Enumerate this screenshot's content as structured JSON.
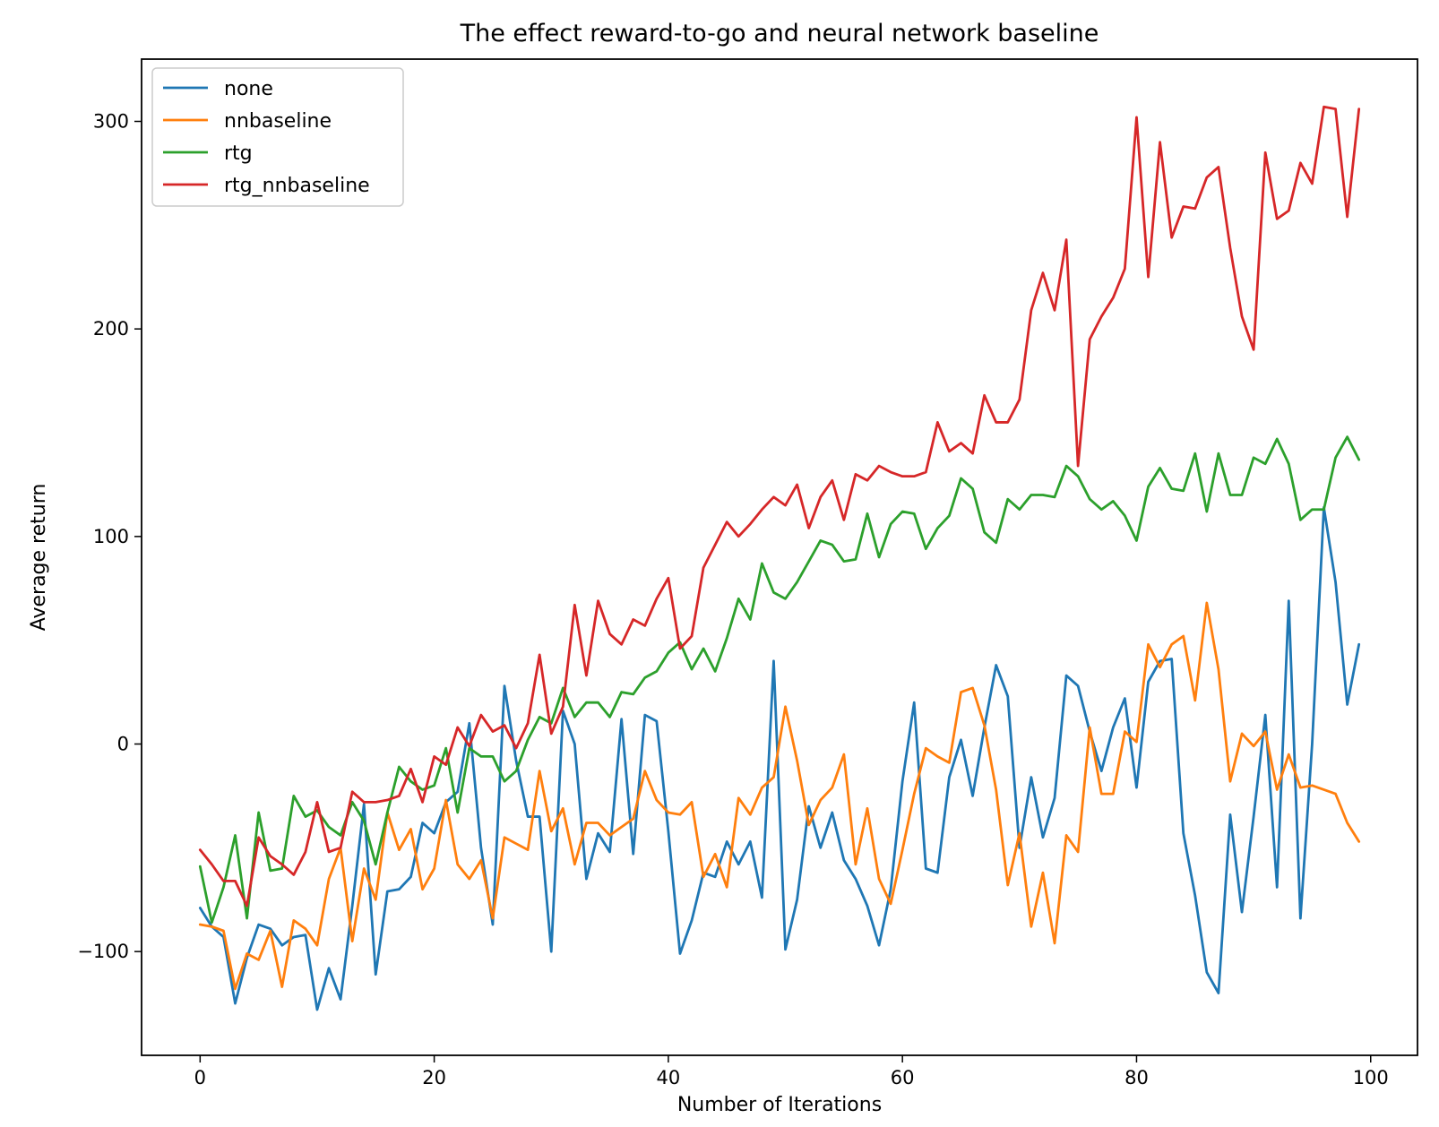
{
  "chart_data": {
    "type": "line",
    "title": "The effect reward-to-go and neural network baseline",
    "xlabel": "Number of Iterations",
    "ylabel": "Average return",
    "xlim": [
      -5,
      104
    ],
    "ylim": [
      -150,
      330
    ],
    "xticks": [
      0,
      20,
      40,
      60,
      80,
      100
    ],
    "yticks": [
      -100,
      0,
      100,
      200,
      300
    ],
    "xtick_labels": [
      "0",
      "20",
      "40",
      "60",
      "80",
      "100"
    ],
    "ytick_labels": [
      "−100",
      "0",
      "100",
      "200",
      "300"
    ],
    "grid": false,
    "legend_position": "upper-left",
    "colors": [
      "#1f77b4",
      "#ff7f0e",
      "#2ca02c",
      "#d62728"
    ],
    "x": [
      0,
      1,
      2,
      3,
      4,
      5,
      6,
      7,
      8,
      9,
      10,
      11,
      12,
      13,
      14,
      15,
      16,
      17,
      18,
      19,
      20,
      21,
      22,
      23,
      24,
      25,
      26,
      27,
      28,
      29,
      30,
      31,
      32,
      33,
      34,
      35,
      36,
      37,
      38,
      39,
      40,
      41,
      42,
      43,
      44,
      45,
      46,
      47,
      48,
      49,
      50,
      51,
      52,
      53,
      54,
      55,
      56,
      57,
      58,
      59,
      60,
      61,
      62,
      63,
      64,
      65,
      66,
      67,
      68,
      69,
      70,
      71,
      72,
      73,
      74,
      75,
      76,
      77,
      78,
      79,
      80,
      81,
      82,
      83,
      84,
      85,
      86,
      87,
      88,
      89,
      90,
      91,
      92,
      93,
      94,
      95,
      96,
      97,
      98,
      99
    ],
    "series": [
      {
        "name": "none",
        "values": [
          -79,
          -88,
          -93,
          -125,
          -103,
          -87,
          -89,
          -97,
          -93,
          -92,
          -128,
          -108,
          -123,
          -78,
          -29,
          -111,
          -71,
          -70,
          -64,
          -38,
          -43,
          -28,
          -23,
          10,
          -50,
          -87,
          28,
          -8,
          -35,
          -35,
          -100,
          16,
          0,
          -65,
          -43,
          -52,
          12,
          -53,
          14,
          11,
          -42,
          -101,
          -85,
          -62,
          -64,
          -47,
          -58,
          -47,
          -74,
          40,
          -99,
          -75,
          -30,
          -50,
          -33,
          -56,
          -65,
          -78,
          -97,
          -70,
          -18,
          20,
          -60,
          -62,
          -16,
          2,
          -25,
          8,
          38,
          23,
          -50,
          -16,
          -45,
          -26,
          33,
          28,
          6,
          -13,
          8,
          22,
          -21,
          30,
          40,
          41,
          -43,
          -73,
          -110,
          -120,
          -34,
          -81,
          -35,
          14,
          -69,
          69,
          -84,
          0,
          114,
          78,
          19,
          48
        ]
      },
      {
        "name": "nnbaseline",
        "values": [
          -87,
          -88,
          -90,
          -118,
          -101,
          -104,
          -90,
          -117,
          -85,
          -89,
          -97,
          -65,
          -50,
          -95,
          -60,
          -75,
          -33,
          -51,
          -41,
          -70,
          -60,
          -27,
          -58,
          -65,
          -56,
          -84,
          -45,
          -48,
          -51,
          -13,
          -42,
          -31,
          -58,
          -38,
          -38,
          -44,
          -40,
          -36,
          -13,
          -27,
          -33,
          -34,
          -28,
          -64,
          -53,
          -69,
          -26,
          -34,
          -21,
          -16,
          18,
          -8,
          -39,
          -27,
          -21,
          -5,
          -58,
          -31,
          -65,
          -77,
          -51,
          -24,
          -2,
          -6,
          -9,
          25,
          27,
          9,
          -22,
          -68,
          -43,
          -88,
          -62,
          -96,
          -44,
          -52,
          8,
          -24,
          -24,
          6,
          1,
          48,
          37,
          48,
          52,
          21,
          68,
          36,
          -18,
          5,
          -1,
          6,
          -22,
          -5,
          -21,
          -20,
          -22,
          -24,
          -38,
          -47
        ]
      },
      {
        "name": "rtg",
        "values": [
          -59,
          -86,
          -69,
          -44,
          -84,
          -33,
          -61,
          -60,
          -25,
          -35,
          -32,
          -40,
          -44,
          -28,
          -37,
          -58,
          -33,
          -11,
          -18,
          -22,
          -20,
          -2,
          -33,
          -2,
          -6,
          -6,
          -18,
          -13,
          2,
          13,
          10,
          27,
          13,
          20,
          20,
          13,
          25,
          24,
          32,
          35,
          44,
          49,
          36,
          46,
          35,
          51,
          70,
          60,
          87,
          73,
          70,
          78,
          88,
          98,
          96,
          88,
          89,
          111,
          90,
          106,
          112,
          111,
          94,
          104,
          110,
          128,
          123,
          102,
          97,
          118,
          113,
          120,
          120,
          119,
          134,
          129,
          118,
          113,
          117,
          110,
          98,
          124,
          133,
          123,
          122,
          140,
          112,
          140,
          120,
          120,
          138,
          135,
          147,
          135,
          108,
          113,
          113,
          138,
          148,
          137
        ]
      },
      {
        "name": "rtg_nnbaseline",
        "values": [
          -51,
          -58,
          -66,
          -66,
          -78,
          -45,
          -54,
          -58,
          -63,
          -52,
          -28,
          -52,
          -50,
          -23,
          -28,
          -28,
          -27,
          -25,
          -12,
          -28,
          -6,
          -10,
          8,
          -1,
          14,
          6,
          9,
          -2,
          10,
          43,
          5,
          18,
          67,
          33,
          69,
          53,
          48,
          60,
          57,
          70,
          80,
          46,
          52,
          85,
          96,
          107,
          100,
          106,
          113,
          119,
          115,
          125,
          104,
          119,
          127,
          108,
          130,
          127,
          134,
          131,
          129,
          129,
          131,
          155,
          141,
          145,
          140,
          168,
          155,
          155,
          166,
          209,
          227,
          209,
          243,
          134,
          195,
          206,
          215,
          229,
          302,
          225,
          290,
          244,
          259,
          258,
          273,
          278,
          239,
          206,
          190,
          285,
          253,
          257,
          280,
          270,
          307,
          306,
          254,
          306
        ]
      }
    ]
  }
}
